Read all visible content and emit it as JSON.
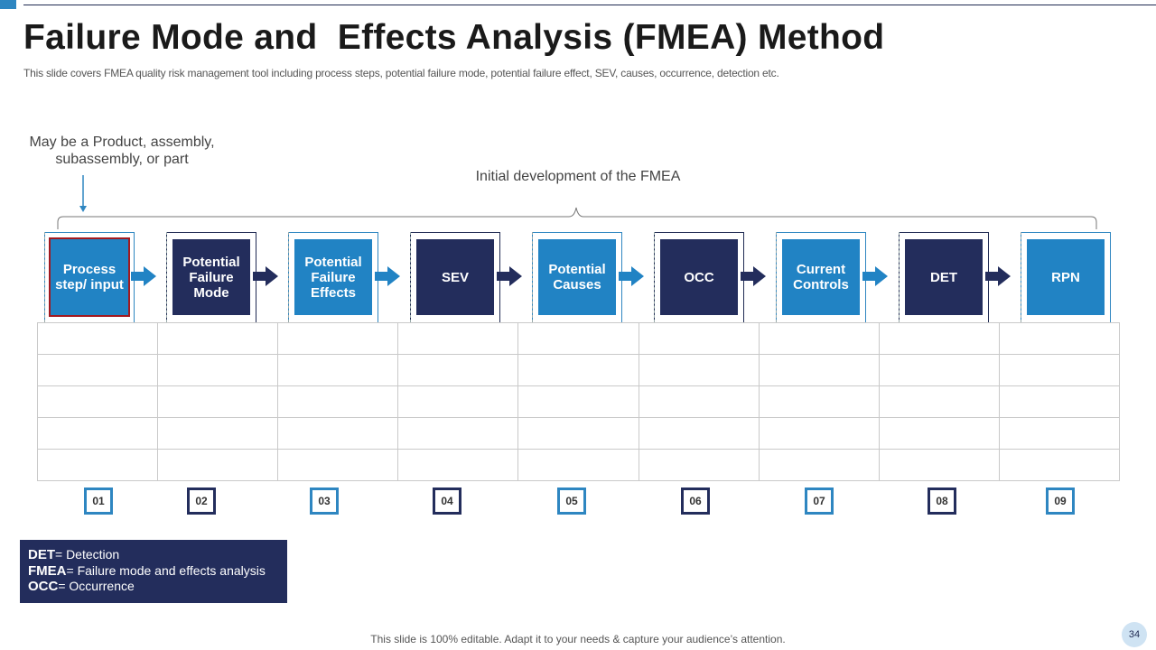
{
  "slide": {
    "title": "Failure Mode and  Effects Analysis (FMEA) Method",
    "subtitle": "This slide covers FMEA  quality risk management tool including process steps, potential failure mode, potential failure effect, SEV,  causes, occurrence, detection etc.",
    "note_left": "May be a Product, assembly, subassembly,  or part",
    "brace_label": "Initial development of the FMEA",
    "footer": "This slide is 100% editable. Adapt it to your needs & capture your audience’s attention.",
    "page_number": "34"
  },
  "steps": [
    {
      "label": "Process step/ input",
      "number": "01",
      "style": "blue"
    },
    {
      "label": "Potential Failure Mode",
      "number": "02",
      "style": "navy"
    },
    {
      "label": "Potential Failure Effects",
      "number": "03",
      "style": "blue"
    },
    {
      "label": "SEV",
      "number": "04",
      "style": "navy"
    },
    {
      "label": "Potential Causes",
      "number": "05",
      "style": "blue"
    },
    {
      "label": "OCC",
      "number": "06",
      "style": "navy"
    },
    {
      "label": "Current Controls",
      "number": "07",
      "style": "blue"
    },
    {
      "label": "DET",
      "number": "08",
      "style": "navy"
    },
    {
      "label": "RPN",
      "number": "09",
      "style": "blue"
    }
  ],
  "legend": [
    {
      "term": "DET",
      "definition": "= Detection"
    },
    {
      "term": "FMEA",
      "definition": "= Failure mode and effects analysis"
    },
    {
      "term": "OCC",
      "definition": "= Occurrence"
    }
  ],
  "colors": {
    "blue": "#2183c4",
    "navy": "#232d5c",
    "highlight_border": "#a2191f"
  }
}
